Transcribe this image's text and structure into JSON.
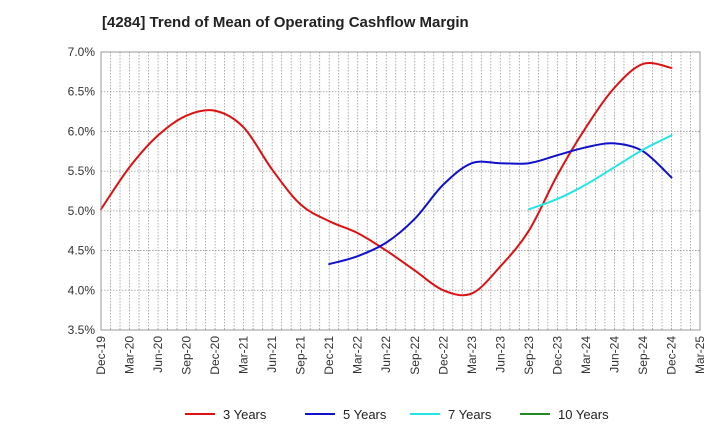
{
  "chart_data": {
    "type": "line",
    "title": "[4284]  Trend of Mean of Operating Cashflow Margin",
    "xlabel": "",
    "ylabel": "",
    "ylim": [
      3.5,
      7.0
    ],
    "y_ticks": [
      "3.5%",
      "4.0%",
      "4.5%",
      "5.0%",
      "5.5%",
      "6.0%",
      "6.5%",
      "7.0%"
    ],
    "x_ticks": [
      "Dec-19",
      "Mar-20",
      "Jun-20",
      "Sep-20",
      "Dec-20",
      "Mar-21",
      "Jun-21",
      "Sep-21",
      "Dec-21",
      "Mar-22",
      "Jun-22",
      "Sep-22",
      "Dec-22",
      "Mar-23",
      "Jun-23",
      "Sep-23",
      "Dec-23",
      "Mar-24",
      "Jun-24",
      "Sep-24",
      "Dec-24",
      "Mar-25"
    ],
    "grid": true,
    "legend_position": "bottom",
    "series": [
      {
        "name": "3 Years",
        "color": "#dd1111",
        "x": [
          "Dec-19",
          "Mar-20",
          "Jun-20",
          "Sep-20",
          "Dec-20",
          "Mar-21",
          "Jun-21",
          "Sep-21",
          "Dec-21",
          "Mar-22",
          "Jun-22",
          "Sep-22",
          "Dec-22",
          "Mar-23",
          "Jun-23",
          "Sep-23",
          "Dec-23",
          "Mar-24",
          "Jun-24",
          "Sep-24",
          "Dec-24"
        ],
        "values": [
          5.02,
          5.55,
          5.95,
          6.2,
          6.26,
          6.05,
          5.52,
          5.08,
          4.87,
          4.72,
          4.5,
          4.25,
          4.0,
          3.96,
          4.3,
          4.75,
          5.45,
          6.05,
          6.55,
          6.85,
          6.8
        ]
      },
      {
        "name": "5 Years",
        "color": "#1111cc",
        "x": [
          "Dec-21",
          "Mar-22",
          "Jun-22",
          "Sep-22",
          "Dec-22",
          "Mar-23",
          "Jun-23",
          "Sep-23",
          "Dec-23",
          "Mar-24",
          "Jun-24",
          "Sep-24",
          "Dec-24"
        ],
        "values": [
          4.33,
          4.43,
          4.6,
          4.9,
          5.33,
          5.6,
          5.6,
          5.6,
          5.7,
          5.8,
          5.85,
          5.75,
          5.42
        ]
      },
      {
        "name": "7 Years",
        "color": "#22e5e5",
        "x": [
          "Sep-23",
          "Dec-23",
          "Mar-24",
          "Jun-24",
          "Sep-24",
          "Dec-24"
        ],
        "values": [
          5.02,
          5.15,
          5.33,
          5.55,
          5.77,
          5.95
        ]
      },
      {
        "name": "10 Years",
        "color": "#228822",
        "x": [],
        "values": []
      }
    ]
  }
}
